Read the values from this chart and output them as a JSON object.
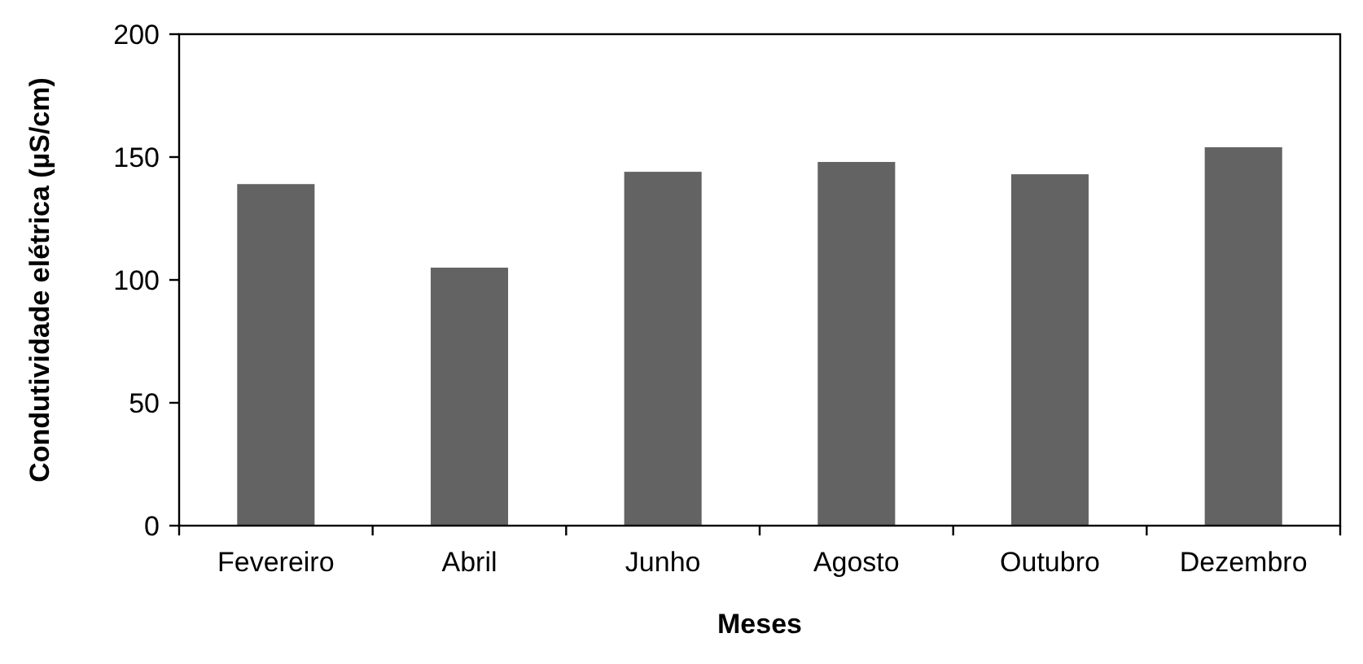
{
  "chart_data": {
    "type": "bar",
    "xlabel": "Meses",
    "ylabel": "Condutividade elétrica (µS/cm)",
    "categories": [
      "Fevereiro",
      "Abril",
      "Junho",
      "Agosto",
      "Outubro",
      "Dezembro"
    ],
    "values": [
      139,
      105,
      144,
      148,
      143,
      154
    ],
    "color": "#636363",
    "ylim": [
      0,
      200
    ],
    "yticks": [
      0,
      50,
      100,
      150,
      200
    ],
    "grid": false
  }
}
